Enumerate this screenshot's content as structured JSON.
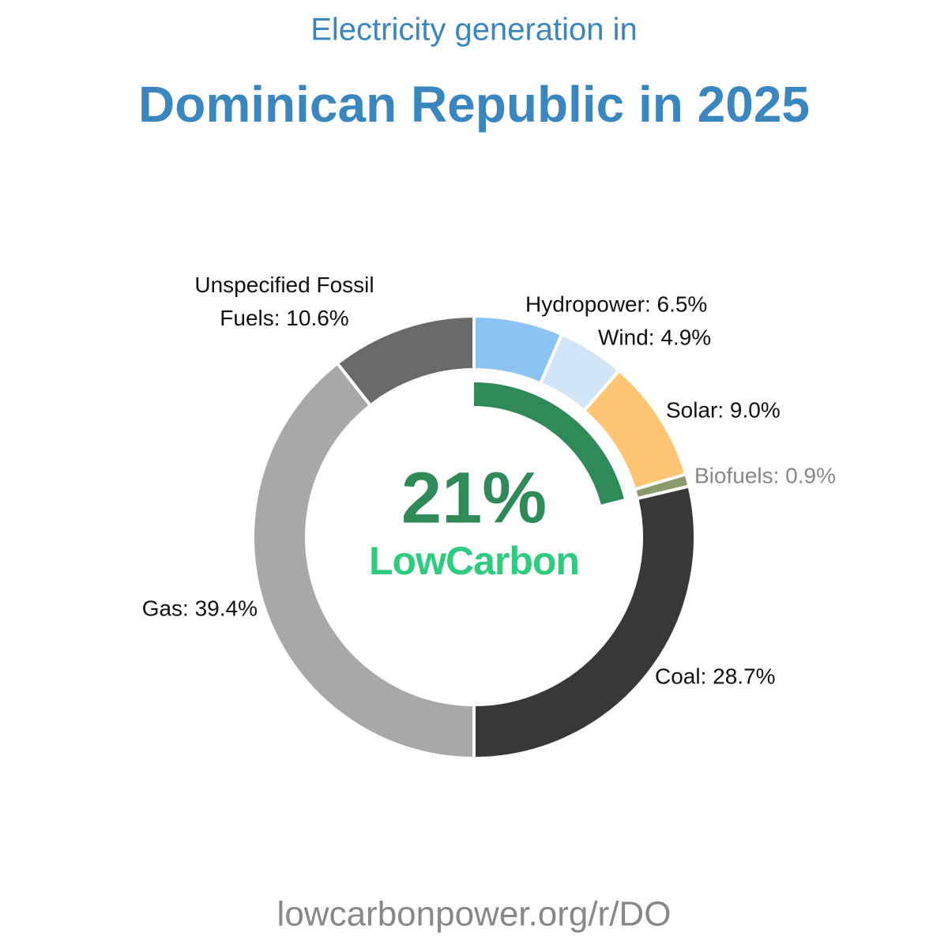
{
  "chart_data": {
    "type": "donut",
    "subtitle": "Electricity generation in",
    "title": "Dominican Republic in 2025",
    "categories": [
      "Hydropower",
      "Wind",
      "Solar",
      "Biofuels",
      "Coal",
      "Gas",
      "Unspecified Fossil Fuels"
    ],
    "values": [
      6.5,
      4.9,
      9.0,
      0.9,
      28.7,
      39.4,
      10.6
    ],
    "value_labels": [
      "Hydropower: 6.5%",
      "Wind: 4.9%",
      "Solar: 9.0%",
      "Biofuels: 0.9%",
      "Coal: 28.7%",
      "Gas: 39.4%",
      "Unspecified Fossil Fuels: 10.6%"
    ],
    "colors": [
      "#8bc4f3",
      "#d0e6f7",
      "#fec574",
      "#8a9a6b",
      "#383838",
      "#a8a8a8",
      "#6a6a6a"
    ],
    "low_carbon": {
      "value": 21,
      "label": "21%"
    },
    "low_carbon_color": "#2e8b57",
    "brand": "LowCarbon",
    "footer": "lowcarbonpower.org/r/DO"
  }
}
